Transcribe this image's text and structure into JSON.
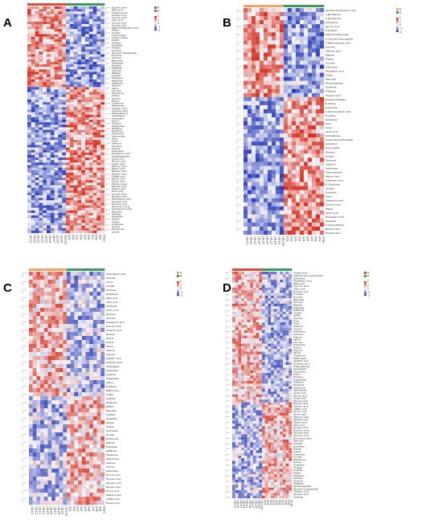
{
  "figure": {
    "panel_labels": [
      "A",
      "B",
      "C",
      "D"
    ]
  },
  "colors": {
    "low": "#2c3fb8",
    "mid": "#f4f4f8",
    "high": "#d7301f",
    "group_a": "#3a9b5a",
    "group_b_A": "#e34a33",
    "group_b_B": "#f4a261",
    "group_b_C": "#f4a261",
    "group_b_D": "#e34a33"
  },
  "chart_data": [
    {
      "panel": "A",
      "type": "heatmap",
      "color_scale": {
        "min": -2,
        "max": 2,
        "ticks": [
          "2",
          "1",
          "0",
          "-1",
          "-2"
        ]
      },
      "legend": [
        "A",
        "B"
      ],
      "columns": [
        "LDLC1",
        "LDLC2",
        "LDLC3",
        "LDLC4",
        "LDLC5",
        "LDLC6",
        "LDLC7",
        "LDLC8",
        "LDLC9",
        "LDLC10",
        "CK1",
        "CK2",
        "CK3",
        "CK4",
        "CK5",
        "CK6",
        "CK7",
        "CK8",
        "CK9",
        "CK10"
      ],
      "split_after_column": 9,
      "split_after_row": 31,
      "rows": [
        "Glyceric acid",
        "Malic acid",
        "Threonic acid",
        "Fumaric acid",
        "Succinic acid",
        "Citric acid",
        "Aconitic acid",
        "Isocitric acid",
        "alpha-Ketoglutaric acid",
        "Ribitol",
        "Inositol",
        "myo-Inositol",
        "scyllo-Inositol",
        "Xylitol",
        "Arabitol",
        "Erythritol",
        "Threitol",
        "Glycerol",
        "Glycerol 3-phosphate",
        "Fructose",
        "Glucose",
        "Mannose",
        "Galactose",
        "Sorbose",
        "Tagatose",
        "Sucrose",
        "Maltose",
        "Lactose",
        "Trehalose",
        "Melibiose",
        "Raffinose",
        "Alanine",
        "Valine",
        "Leucine",
        "Isoleucine",
        "Proline",
        "Glycine",
        "Serine",
        "Threonine",
        "Methionine",
        "Aspartic acid",
        "Glutamic acid",
        "Phenylalanine",
        "Asparagine",
        "Glutamine",
        "Lysine",
        "Tyrosine",
        "Tryptophan",
        "Histidine",
        "Ornithine",
        "Putrescine",
        "Spermidine",
        "Urea",
        "Uracil",
        "Adenine",
        "Guanine",
        "Uridine",
        "Adenosine",
        "Phosphoric acid",
        "Pyrophosphate",
        "Lactic acid",
        "Pyruvic acid",
        "Oxalic acid",
        "Malonic acid",
        "Maleic acid",
        "Benzoic acid",
        "Salicylic acid",
        "Caffeic acid",
        "Ferulic acid",
        "Quinic acid",
        "Shikimic acid",
        "Palmitic acid",
        "Stearic acid",
        "Oleic acid",
        "Linoleic acid",
        "Nicotinic acid",
        "Pantothenic acid",
        "Ascorbic acid",
        "Gluconic acid",
        "Glucuronic acid",
        "Galacturonic acid",
        "Mannitol",
        "Sorbitol",
        "Galactitol",
        "Ribose",
        "Xylose",
        "Arabinose",
        "Fucose",
        "Rhamnose",
        "Lyxose"
      ]
    },
    {
      "panel": "B",
      "type": "heatmap",
      "color_scale": {
        "min": -2,
        "max": 2,
        "ticks": [
          "2",
          "1",
          "0",
          "-1",
          "-2"
        ]
      },
      "legend": [
        "A",
        "B"
      ],
      "columns": [
        "LDLC1",
        "LDLC2",
        "LDLC3",
        "LDLC4",
        "LDLC5",
        "LDLC6",
        "LDLC7",
        "LDLC8",
        "LDLC9",
        "LDLC10",
        "CK1",
        "CK2",
        "CK3",
        "CK4",
        "CK5",
        "CK6",
        "CK7",
        "CK8",
        "CK9",
        "CK10"
      ],
      "split_after_column": 9,
      "split_after_row": 21,
      "rows": [
        "gamma-Aminobutyric acid",
        "L-Epicatechin",
        "L-Epicatechin",
        "Putrescine",
        "Pyruvic acid",
        "D-Sorbitol",
        "Catechol beta-oxide",
        "D-Glucose 6-phosphate",
        "3-Methylsalicylic acid",
        "Sucrose",
        "Shikimic acid",
        "Maltose",
        "Ribose",
        "Glucose",
        "Adenosine",
        "Phosphoric acid",
        "Xylitol",
        "Mannose",
        "Pyrophosphate",
        "Ornithine",
        "D-Ribose",
        "Threonic acid",
        "Diethyl phthalate",
        "D-Proline",
        "Isoleucine",
        "5-Hydroxyvaleric acid",
        "Fructose",
        "Galactose",
        "Urea",
        "Uracil",
        "Lactic acid",
        "beta-Alanine",
        "D-Glucose-6-phosphate",
        "Galactinol",
        "Myo-inositol",
        "Glycerol",
        "Inositol",
        "Tyramine",
        "Catechin",
        "Sophorose",
        "Phenylalanine",
        "Malonic acid",
        "Citramalic acid",
        "D-Galactose",
        "Lactitol",
        "Erythritol",
        "Uracil",
        "Galactonic acid",
        "Gluconic acid",
        "Ribitol",
        "Lactic acid",
        "Phosphoric acid",
        "Squalene",
        "2-Aminoethanol",
        "Benzoic acid",
        "Hexadecanol"
      ]
    },
    {
      "panel": "C",
      "type": "heatmap",
      "color_scale": {
        "min": -2,
        "max": 2,
        "ticks": [
          "2",
          "1",
          "0",
          "-1",
          "-2"
        ]
      },
      "legend": [
        "A",
        "B"
      ],
      "columns": [
        "LDLC1",
        "LDLC2",
        "LDLC3",
        "LDLC4",
        "LDLC5",
        "LDLC6",
        "LDLC7",
        "LDLC8",
        "LDLC9",
        "LDLC10",
        "CK1",
        "CK2",
        "CK3",
        "CK4",
        "CK5",
        "CK6",
        "CK7",
        "CK8",
        "CK9",
        "CK10"
      ],
      "split_after_column": 9,
      "split_after_row": 30,
      "rows": [
        "Chlorogenic acid",
        "Glucose",
        "Uracil",
        "Inositol",
        "Fructose",
        "Galactose",
        "Malic acid",
        "Citric acid",
        "Ornithine",
        "Lactic acid",
        "Glycerol",
        "Sucrose",
        "Phosphoric acid",
        "Succinic acid",
        "Threonic acid",
        "Glycine",
        "Serine",
        "Proline",
        "Valine",
        "Alanine",
        "Leucine",
        "Aspartic acid",
        "Glutamic acid",
        "Asparagine",
        "Glutamine",
        "Tyrosine",
        "Tryptophan",
        "Lysine",
        "Histidine",
        "Methionine",
        "Xylitol",
        "Arabitol",
        "Erythritol",
        "Ribitol",
        "Mannitol",
        "Sorbitol",
        "Galactitol",
        "Ribose",
        "Xylose",
        "Arabinose",
        "Fucose",
        "Rhamnose",
        "Maltose",
        "Trehalose",
        "Raffinose",
        "Putrescine",
        "Spermidine",
        "Adenine",
        "Uridine",
        "Adenosine",
        "Pyruvic acid",
        "Fumaric acid",
        "Glyceric acid",
        "Benzoic acid",
        "Quinic acid",
        "Shikimic acid",
        "Caffeic acid",
        "Ferulic acid"
      ]
    },
    {
      "panel": "D",
      "type": "heatmap",
      "color_scale": {
        "min": -2,
        "max": 2,
        "ticks": [
          "2",
          "1",
          "0",
          "-1",
          "-2"
        ]
      },
      "legend": [
        "A",
        "B"
      ],
      "columns": [
        "LDLC1",
        "LDLC2",
        "LDLC3",
        "LDLC4",
        "LDLC5",
        "LDLC6",
        "LDLC7",
        "LDLC8",
        "LDLC9",
        "LDLC10",
        "CK1",
        "CK2",
        "CK3",
        "CK4",
        "CK5",
        "CK6",
        "CK7",
        "CK8",
        "CK9",
        "CK10"
      ],
      "split_after_column": 9,
      "split_after_row": 48,
      "rows": [
        "Sinapic acid",
        "alpha-D-Glucopyranoside",
        "Galactose",
        "Phosphoric acid",
        "Malic acid",
        "Succinic acid",
        "Citric acid",
        "Fumaric acid",
        "Fructose",
        "Glucose",
        "Mannose",
        "Sucrose",
        "Maltose",
        "Trehalose",
        "Raffinose",
        "Inositol",
        "Xylitol",
        "Glycerol",
        "Urea",
        "Uracil",
        "Adenine",
        "Uridine",
        "Adenosine",
        "Guanine",
        "Alanine",
        "Valine",
        "Leucine",
        "Isoleucine",
        "Proline",
        "Glycine",
        "Serine",
        "Threonine",
        "Methionine",
        "Aspartic acid",
        "Glutamic acid",
        "Phenylalanine",
        "Asparagine",
        "Glutamine",
        "Lysine",
        "Tyrosine",
        "Tryptophan",
        "Histidine",
        "Ornithine",
        "Putrescine",
        "Spermidine",
        "Lactic acid",
        "Pyruvic acid",
        "Oxalic acid",
        "Malonic acid",
        "Benzoic acid",
        "Salicylic acid",
        "Caffeic acid",
        "Ferulic acid",
        "Quinic acid",
        "Shikimic acid",
        "Palmitic acid",
        "Stearic acid",
        "Oleic acid",
        "Linoleic acid",
        "Nicotinic acid",
        "Ascorbic acid",
        "Gluconic acid",
        "Glucuronic acid",
        "Mannitol",
        "Sorbitol",
        "Galactitol",
        "Ribose",
        "Xylose",
        "Arabinose",
        "Fucose",
        "Rhamnose",
        "Lyxose",
        "Erythritol",
        "Threitol",
        "Arabitol",
        "Ribitol",
        "Melibiose",
        "Lactose",
        "Sorbose",
        "Tagatose",
        "Pyrophosphate",
        "Glycerol 3-phosphate",
        "Threonic acid",
        "Glyceric acid",
        "Xylulose"
      ]
    }
  ]
}
